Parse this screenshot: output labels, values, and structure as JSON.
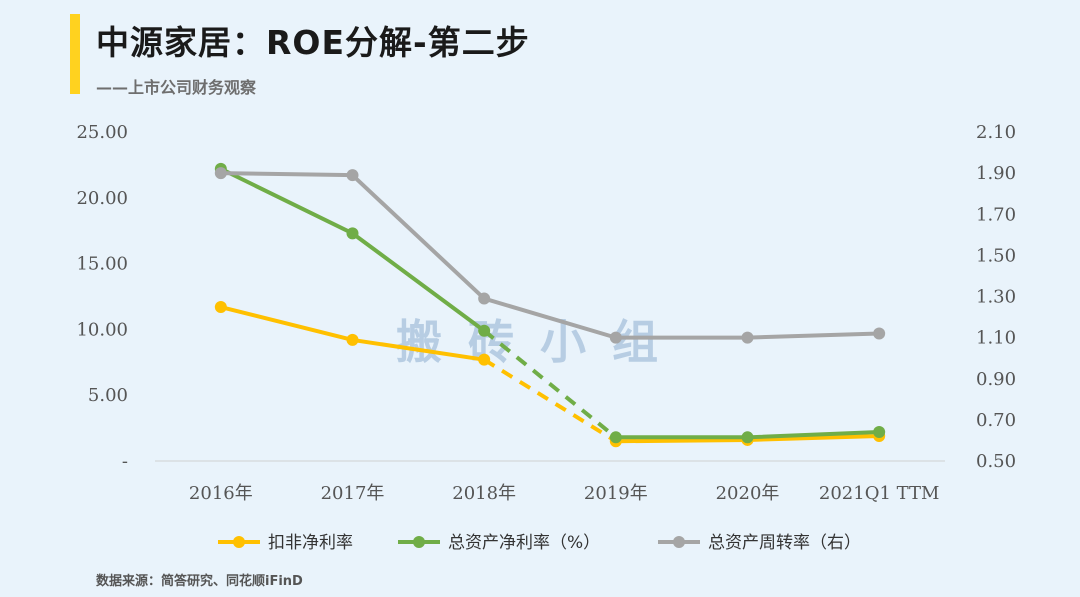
{
  "header": {
    "title": "中源家居：ROE分解-第二步",
    "subtitle": "——上市公司财务观察"
  },
  "footer": {
    "source": "数据来源：简答研究、同花顺iFinD"
  },
  "watermark": "搬砖小组",
  "colors": {
    "accent": "#ffd21f",
    "yellow": "#ffc000",
    "green": "#70ad47",
    "gray": "#a5a5a5"
  },
  "chart_data": {
    "type": "line",
    "categories": [
      "2016年",
      "2017年",
      "2018年",
      "2019年",
      "2020年",
      "2021Q1 TTM"
    ],
    "y_left": {
      "ticks": [
        "-",
        "5.00",
        "10.00",
        "15.00",
        "20.00",
        "25.00"
      ],
      "range": [
        0,
        25
      ]
    },
    "y_right": {
      "ticks": [
        "0.50",
        "0.70",
        "0.90",
        "1.10",
        "1.30",
        "1.50",
        "1.70",
        "1.90",
        "2.10"
      ],
      "range": [
        0.5,
        2.1
      ]
    },
    "series": [
      {
        "name": "扣非净利率",
        "axis": "left",
        "color": "#ffc000",
        "values": [
          11.7,
          9.2,
          7.7,
          1.5,
          1.6,
          1.9
        ],
        "dashed_segment": [
          2,
          3
        ]
      },
      {
        "name": "总资产净利率（%）",
        "axis": "left",
        "color": "#70ad47",
        "values": [
          22.2,
          17.3,
          9.9,
          1.8,
          1.8,
          2.2
        ],
        "dashed_segment": [
          2,
          3
        ]
      },
      {
        "name": "总资产周转率（右）",
        "axis": "right",
        "color": "#a5a5a5",
        "values": [
          1.9,
          1.89,
          1.29,
          1.1,
          1.1,
          1.12
        ]
      }
    ],
    "legend_position": "bottom"
  }
}
